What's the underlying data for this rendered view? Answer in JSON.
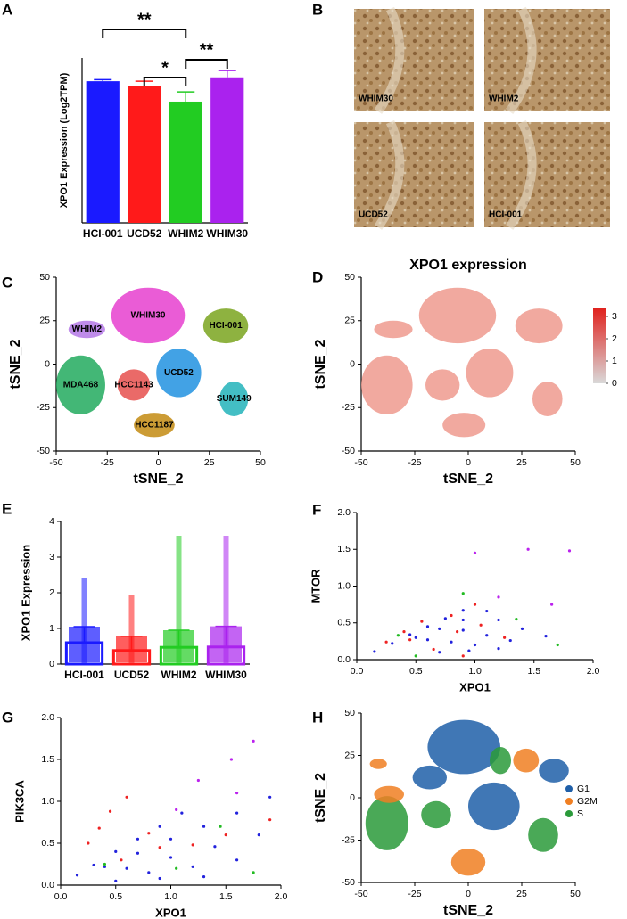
{
  "chart_data": [
    {
      "type": "bar-error",
      "label": "A",
      "ylabel": "XPO1 Expression (Log2TPM)",
      "categories": [
        "HCI-001",
        "UCD52",
        "WHIM2",
        "WHIM30"
      ],
      "values": [
        7.3,
        7.05,
        6.25,
        7.5
      ],
      "errors": [
        0.08,
        0.25,
        0.5,
        0.35
      ],
      "colors": [
        "#1a1aff",
        "#ff1a1a",
        "#22cc22",
        "#aa22ee"
      ],
      "ylim": [
        0,
        8.5
      ],
      "annotations": [
        "**",
        "*",
        "**"
      ]
    },
    {
      "type": "images",
      "label": "B",
      "images": [
        "WHIM30",
        "WHIM2",
        "UCD52",
        "HCI-001"
      ]
    },
    {
      "type": "clusters",
      "label": "C",
      "xlabel": "tSNE_2",
      "ylabel": "tSNE_2",
      "xlim": [
        -50,
        50
      ],
      "ylim": [
        -50,
        50
      ],
      "xticks": [
        -50,
        -25,
        0,
        25,
        50
      ],
      "yticks": [
        -50,
        -25,
        0,
        25,
        50
      ],
      "clusters": [
        {
          "name": "WHIM30",
          "color": "#e63fcf",
          "x": -5,
          "y": 28,
          "rx": 18,
          "ry": 16
        },
        {
          "name": "HCI-001",
          "color": "#7aa41e",
          "x": 33,
          "y": 22,
          "rx": 11,
          "ry": 10
        },
        {
          "name": "WHIM2",
          "color": "#b478e6",
          "x": -35,
          "y": 20,
          "rx": 9,
          "ry": 5
        },
        {
          "name": "MDA468",
          "color": "#22aa5e",
          "x": -38,
          "y": -12,
          "rx": 12,
          "ry": 17
        },
        {
          "name": "HCC1143",
          "color": "#e6504e",
          "x": -12,
          "y": -12,
          "rx": 8,
          "ry": 9
        },
        {
          "name": "UCD52",
          "color": "#2192e0",
          "x": 10,
          "y": -5,
          "rx": 11,
          "ry": 14
        },
        {
          "name": "SUM149",
          "color": "#22b3ba",
          "x": 37,
          "y": -20,
          "rx": 7,
          "ry": 10
        },
        {
          "name": "HCC1187",
          "color": "#c38b12",
          "x": -2,
          "y": -35,
          "rx": 10,
          "ry": 7
        }
      ]
    },
    {
      "type": "expression-map",
      "label": "D",
      "title": "XPO1 expression",
      "xlabel": "tSNE_2",
      "ylabel": "tSNE_2",
      "xlim": [
        -50,
        50
      ],
      "ylim": [
        -50,
        50
      ],
      "xticks": [
        -50,
        -25,
        0,
        25,
        50
      ],
      "yticks": [
        -50,
        -25,
        0,
        25,
        50
      ],
      "color": "#ee9a8e",
      "colorbar": {
        "lim": [
          0,
          3.4
        ],
        "ticks": [
          0,
          1,
          2,
          3
        ],
        "colors": [
          "#d9d9d9",
          "#e0201c"
        ]
      },
      "clusters": [
        {
          "x": -5,
          "y": 28,
          "rx": 18,
          "ry": 16
        },
        {
          "x": 33,
          "y": 22,
          "rx": 11,
          "ry": 10
        },
        {
          "x": -35,
          "y": 20,
          "rx": 9,
          "ry": 5
        },
        {
          "x": -38,
          "y": -12,
          "rx": 12,
          "ry": 17
        },
        {
          "x": -12,
          "y": -12,
          "rx": 8,
          "ry": 9
        },
        {
          "x": 10,
          "y": -5,
          "rx": 11,
          "ry": 14
        },
        {
          "x": 37,
          "y": -20,
          "rx": 7,
          "ry": 10
        },
        {
          "x": -2,
          "y": -35,
          "rx": 10,
          "ry": 7
        }
      ]
    },
    {
      "type": "bar-points",
      "label": "E",
      "ylabel": "XPO1 Expression",
      "categories": [
        "HCI-001",
        "UCD52",
        "WHIM2",
        "WHIM30"
      ],
      "values": [
        0.6,
        0.38,
        0.47,
        0.48
      ],
      "errors": [
        0.45,
        0.4,
        0.48,
        0.58
      ],
      "max": [
        2.4,
        1.95,
        3.6,
        3.6
      ],
      "colors": [
        "#1a1aff",
        "#ff1a1a",
        "#22cc22",
        "#aa22ee"
      ],
      "ylim": [
        0,
        4
      ],
      "yticks": [
        0,
        1,
        2,
        3,
        4
      ]
    },
    {
      "type": "scatter",
      "label": "F",
      "xlabel": "XPO1",
      "ylabel": "MTOR",
      "xlim": [
        0,
        2
      ],
      "ylim": [
        0,
        2
      ],
      "xticks": [
        {
          "value": 0,
          "label": "0.0"
        },
        {
          "value": 0.5,
          "label": "0.5"
        },
        {
          "value": 1,
          "label": "1.0"
        },
        {
          "value": 1.5,
          "label": "1.5"
        },
        {
          "value": 2,
          "label": "2.0"
        }
      ],
      "yticks": [
        {
          "value": 0,
          "label": "0.0"
        },
        {
          "value": 0.5,
          "label": "0.5"
        },
        {
          "value": 1,
          "label": "1.0"
        },
        {
          "value": 1.5,
          "label": "1.5"
        },
        {
          "value": 2,
          "label": "2.0"
        }
      ],
      "series": [
        {
          "color": "#2222dd",
          "x": [
            0.15,
            0.3,
            0.45,
            0.6,
            0.75,
            0.9,
            0.5,
            0.7,
            0.9,
            1.1,
            0.6,
            0.9,
            1.2,
            0.8,
            1.1,
            1.4,
            1.0,
            1.3,
            1.6,
            0.7,
            0.95,
            1.2
          ],
          "y": [
            0.11,
            0.22,
            0.34,
            0.45,
            0.56,
            0.67,
            0.3,
            0.42,
            0.54,
            0.66,
            0.27,
            0.4,
            0.54,
            0.24,
            0.33,
            0.42,
            0.2,
            0.26,
            0.32,
            0.1,
            0.12,
            0.15
          ]
        },
        {
          "color": "#ee2222",
          "x": [
            0.25,
            0.4,
            0.55,
            0.8,
            1.0,
            0.45,
            0.85,
            1.05,
            0.65,
            1.25,
            0.9
          ],
          "y": [
            0.24,
            0.38,
            0.52,
            0.6,
            0.75,
            0.27,
            0.38,
            0.47,
            0.14,
            0.3,
            0.05
          ]
        },
        {
          "color": "#22bb22",
          "x": [
            0.35,
            0.9,
            1.35,
            1.7,
            0.5
          ],
          "y": [
            0.33,
            0.9,
            0.55,
            0.2,
            0.05
          ]
        },
        {
          "color": "#bb22ee",
          "x": [
            1.0,
            1.45,
            1.8,
            1.2,
            1.65
          ],
          "y": [
            1.45,
            1.5,
            1.48,
            0.85,
            0.75
          ]
        }
      ]
    },
    {
      "type": "scatter",
      "label": "G",
      "xlabel": "XPO1",
      "ylabel": "PIK3CA",
      "xlim": [
        0,
        2
      ],
      "ylim": [
        0,
        2
      ],
      "xticks": [
        {
          "value": 0,
          "label": "0.0"
        },
        {
          "value": 0.5,
          "label": "0.5"
        },
        {
          "value": 1,
          "label": "1.0"
        },
        {
          "value": 1.5,
          "label": "1.5"
        },
        {
          "value": 2,
          "label": "2.0"
        }
      ],
      "yticks": [
        {
          "value": 0,
          "label": "0.0"
        },
        {
          "value": 0.5,
          "label": "0.5"
        },
        {
          "value": 1,
          "label": "1.0"
        },
        {
          "value": 1.5,
          "label": "1.5"
        },
        {
          "value": 2,
          "label": "2.0"
        }
      ],
      "series": [
        {
          "color": "#2222dd",
          "x": [
            0.15,
            0.3,
            0.5,
            0.7,
            0.9,
            1.1,
            0.4,
            0.7,
            1.0,
            1.3,
            1.6,
            0.6,
            1.0,
            1.4,
            1.8,
            0.8,
            1.2,
            1.6,
            0.5,
            0.9,
            1.3,
            1.9
          ],
          "y": [
            0.12,
            0.24,
            0.4,
            0.55,
            0.7,
            0.86,
            0.22,
            0.38,
            0.55,
            0.7,
            0.86,
            0.2,
            0.33,
            0.46,
            0.6,
            0.15,
            0.22,
            0.3,
            0.05,
            0.08,
            0.1,
            1.05
          ]
        },
        {
          "color": "#ee2222",
          "x": [
            0.25,
            0.35,
            0.45,
            0.6,
            0.8,
            0.55,
            0.9,
            1.2,
            1.5,
            1.9
          ],
          "y": [
            0.5,
            0.68,
            0.88,
            1.05,
            0.62,
            0.3,
            0.45,
            0.48,
            0.6,
            0.78
          ]
        },
        {
          "color": "#22bb22",
          "x": [
            0.4,
            1.05,
            1.45,
            1.75
          ],
          "y": [
            0.25,
            0.2,
            0.7,
            0.15
          ]
        },
        {
          "color": "#bb22ee",
          "x": [
            1.25,
            1.55,
            1.75,
            1.05,
            1.6
          ],
          "y": [
            1.25,
            1.5,
            1.72,
            0.9,
            1.1
          ]
        }
      ]
    },
    {
      "type": "phase-map",
      "label": "H",
      "xlabel": "tSNE_2",
      "ylabel": "tSNE_2",
      "xlim": [
        -50,
        50
      ],
      "ylim": [
        -50,
        50
      ],
      "xticks": [
        -50,
        -25,
        0,
        25,
        50
      ],
      "yticks": [
        -50,
        -25,
        0,
        25,
        50
      ],
      "series": [
        {
          "name": "G1",
          "color": "#1f5fa8"
        },
        {
          "name": "G2M",
          "color": "#f07f22"
        },
        {
          "name": "S",
          "color": "#2a9a3a"
        }
      ],
      "clusters": [
        {
          "x": -2,
          "y": 30,
          "rx": 17,
          "ry": 16,
          "phase": 0
        },
        {
          "x": 15,
          "y": 22,
          "rx": 5,
          "ry": 8,
          "phase": 2
        },
        {
          "x": 27,
          "y": 22,
          "rx": 6,
          "ry": 7,
          "phase": 1
        },
        {
          "x": 40,
          "y": 16,
          "rx": 7,
          "ry": 7,
          "phase": 0
        },
        {
          "x": -38,
          "y": -15,
          "rx": 10,
          "ry": 16,
          "phase": 2
        },
        {
          "x": -37,
          "y": 2,
          "rx": 7,
          "ry": 5,
          "phase": 1
        },
        {
          "x": -15,
          "y": -10,
          "rx": 7,
          "ry": 8,
          "phase": 2
        },
        {
          "x": 12,
          "y": -5,
          "rx": 12,
          "ry": 14,
          "phase": 0
        },
        {
          "x": 35,
          "y": -22,
          "rx": 7,
          "ry": 10,
          "phase": 2
        },
        {
          "x": 0,
          "y": -38,
          "rx": 8,
          "ry": 8,
          "phase": 1
        },
        {
          "x": -18,
          "y": 12,
          "rx": 8,
          "ry": 7,
          "phase": 0
        },
        {
          "x": -42,
          "y": 20,
          "rx": 4,
          "ry": 3,
          "phase": 1
        }
      ]
    }
  ]
}
